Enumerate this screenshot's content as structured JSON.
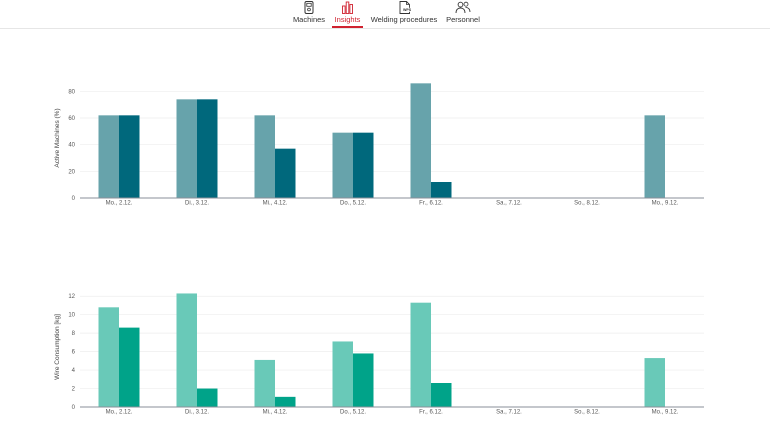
{
  "nav": {
    "items": [
      {
        "label": "Machines",
        "icon": "machine-icon",
        "active": false
      },
      {
        "label": "Insights",
        "icon": "bar-chart-icon",
        "active": true
      },
      {
        "label": "Welding procedures",
        "icon": "wps-document-icon",
        "active": false,
        "icon_text": "WPS"
      },
      {
        "label": "Personnel",
        "icon": "people-icon",
        "active": false
      }
    ],
    "active_color": "#d0212f"
  },
  "chart_data": [
    {
      "type": "bar",
      "ylabel": "Active Machines (%)",
      "xlabel": "",
      "categories": [
        "Mo., 2.12.",
        "Di., 3.12.",
        "Mi., 4.12.",
        "Do., 5.12.",
        "Fr., 6.12.",
        "Sa., 7.12.",
        "So., 8.12.",
        "Mo., 9.12."
      ],
      "series": [
        {
          "color": "#67a3ab",
          "values": [
            62,
            74,
            62,
            49,
            86,
            0,
            0,
            62
          ]
        },
        {
          "color": "#00687c",
          "values": [
            62,
            74,
            37,
            49,
            12,
            0,
            0,
            null
          ]
        }
      ],
      "ylim": [
        0,
        90
      ],
      "yticks": [
        0,
        20,
        40,
        60,
        80
      ],
      "grid": true
    },
    {
      "type": "bar",
      "ylabel": "Wire Consumption [kg]",
      "xlabel": "",
      "categories": [
        "Mo., 2.12.",
        "Di., 3.12.",
        "Mi., 4.12.",
        "Do., 5.12.",
        "Fr., 6.12.",
        "Sa., 7.12.",
        "So., 8.12.",
        "Mo., 9.12."
      ],
      "series": [
        {
          "color": "#69c9b8",
          "values": [
            10.8,
            12.3,
            5.1,
            7.1,
            11.3,
            0,
            0,
            5.3
          ]
        },
        {
          "color": "#00a389",
          "values": [
            8.6,
            2.0,
            1.1,
            5.8,
            2.6,
            0,
            0,
            null
          ]
        }
      ],
      "ylim": [
        0,
        13
      ],
      "yticks": [
        0,
        2,
        4,
        6,
        8,
        10,
        12
      ],
      "grid": true
    }
  ]
}
